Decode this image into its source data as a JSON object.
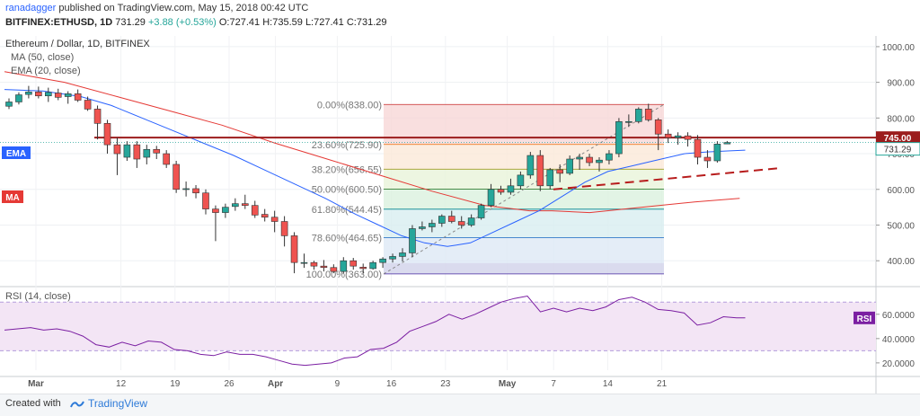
{
  "header": {
    "publisher": "ranadagger",
    "published_text": "published on TradingView.com, May 15, 2018 00:42 UTC",
    "symbol": "BITFINEX:ETHUSD, 1D",
    "last": "731.29",
    "change": "+3.88 (+0.53%)",
    "o_label": "O:",
    "o_value": "727.41",
    "h_label": "H:",
    "h_value": "735.59",
    "l_label": "L:",
    "l_value": "727.41",
    "c_label": "C:",
    "c_value": "731.29"
  },
  "footer": {
    "created_with": "Created with",
    "brand": "TradingView"
  },
  "colors": {
    "up": "#26a69a",
    "down": "#ef5350",
    "ma": "#e53935",
    "ema": "#2962ff",
    "rsi": "#7b1fa2",
    "resistance": "#9b1c1c",
    "trend": "#b71c1c"
  },
  "chart_data": [
    {
      "type": "candlestick",
      "title": "Ethereum / Dollar, 1D, BITFINEX",
      "indicators": [
        "MA (50, close)",
        "EMA (20, close)"
      ],
      "indicator_tags": [
        "EMA",
        "MA"
      ],
      "ylim": [
        330,
        1030
      ],
      "y_ticks": [
        400,
        500,
        600,
        700,
        800,
        900,
        1000
      ],
      "y_tick_labels": [
        "400.00",
        "500.00",
        "600.00",
        "700.00",
        "800.00",
        "900.00",
        "1000.00"
      ],
      "x_ticks": [
        "Mar",
        "12",
        "19",
        "26",
        "Apr",
        "9",
        "16",
        "23",
        "May",
        "7",
        "14",
        "21"
      ],
      "x_tick_days": [
        -5,
        6,
        13,
        20,
        26,
        34,
        41,
        48,
        56,
        62,
        69,
        76
      ],
      "candles_ohlc": [
        [
          833,
          855,
          825,
          845
        ],
        [
          845,
          872,
          838,
          865
        ],
        [
          866,
          890,
          855,
          873
        ],
        [
          873,
          888,
          855,
          862
        ],
        [
          862,
          885,
          845,
          872
        ],
        [
          870,
          882,
          850,
          858
        ],
        [
          860,
          875,
          840,
          868
        ],
        [
          868,
          880,
          845,
          850
        ],
        [
          850,
          860,
          820,
          825
        ],
        [
          825,
          835,
          740,
          785
        ],
        [
          785,
          795,
          700,
          725
        ],
        [
          725,
          745,
          640,
          700
        ],
        [
          690,
          735,
          680,
          725
        ],
        [
          725,
          735,
          660,
          685
        ],
        [
          690,
          725,
          670,
          712
        ],
        [
          712,
          722,
          685,
          702
        ],
        [
          700,
          710,
          660,
          670
        ],
        [
          670,
          680,
          590,
          600
        ],
        [
          600,
          622,
          580,
          602
        ],
        [
          602,
          612,
          575,
          590
        ],
        [
          590,
          600,
          530,
          545
        ],
        [
          545,
          555,
          455,
          535
        ],
        [
          535,
          560,
          520,
          550
        ],
        [
          552,
          575,
          540,
          560
        ],
        [
          560,
          585,
          545,
          555
        ],
        [
          555,
          568,
          520,
          528
        ],
        [
          530,
          545,
          510,
          522
        ],
        [
          522,
          540,
          480,
          510
        ],
        [
          510,
          525,
          440,
          470
        ],
        [
          470,
          480,
          365,
          395
        ],
        [
          395,
          420,
          380,
          395
        ],
        [
          395,
          400,
          375,
          385
        ],
        [
          385,
          402,
          370,
          381
        ],
        [
          381,
          390,
          365,
          370
        ],
        [
          370,
          410,
          365,
          400
        ],
        [
          400,
          408,
          375,
          385
        ],
        [
          382,
          392,
          365,
          378
        ],
        [
          378,
          400,
          375,
          395
        ],
        [
          395,
          410,
          380,
          405
        ],
        [
          405,
          420,
          395,
          412
        ],
        [
          412,
          435,
          398,
          422
        ],
        [
          422,
          500,
          410,
          490
        ],
        [
          490,
          510,
          485,
          495
        ],
        [
          495,
          515,
          480,
          505
        ],
        [
          505,
          530,
          495,
          525
        ],
        [
          525,
          540,
          505,
          510
        ],
        [
          510,
          525,
          490,
          500
        ],
        [
          500,
          530,
          495,
          520
        ],
        [
          520,
          560,
          515,
          555
        ],
        [
          555,
          615,
          550,
          600
        ],
        [
          600,
          610,
          585,
          592
        ],
        [
          592,
          630,
          585,
          610
        ],
        [
          610,
          650,
          600,
          640
        ],
        [
          640,
          705,
          630,
          695
        ],
        [
          695,
          710,
          595,
          610
        ],
        [
          610,
          660,
          600,
          655
        ],
        [
          655,
          670,
          620,
          645
        ],
        [
          645,
          695,
          640,
          685
        ],
        [
          685,
          700,
          655,
          690
        ],
        [
          690,
          700,
          665,
          675
        ],
        [
          675,
          690,
          650,
          682
        ],
        [
          682,
          710,
          670,
          700
        ],
        [
          700,
          800,
          690,
          790
        ],
        [
          790,
          810,
          775,
          790
        ],
        [
          790,
          830,
          785,
          825
        ],
        [
          825,
          840,
          790,
          795
        ],
        [
          795,
          800,
          710,
          755
        ],
        [
          755,
          768,
          730,
          745
        ],
        [
          745,
          760,
          725,
          750
        ],
        [
          750,
          760,
          720,
          740
        ],
        [
          740,
          752,
          670,
          690
        ],
        [
          690,
          710,
          660,
          680
        ],
        [
          680,
          735,
          675,
          727
        ],
        [
          727.41,
          735.59,
          727.41,
          731.29
        ]
      ],
      "ma50": [
        [
          0,
          930
        ],
        [
          8,
          900
        ],
        [
          15,
          860
        ],
        [
          22,
          820
        ],
        [
          29,
          780
        ],
        [
          36,
          730
        ],
        [
          43,
          685
        ],
        [
          50,
          640
        ],
        [
          57,
          595
        ],
        [
          64,
          555
        ],
        [
          70,
          540
        ],
        [
          73,
          540
        ],
        [
          78,
          535
        ],
        [
          85,
          550
        ],
        [
          92,
          565
        ],
        [
          98,
          575
        ]
      ],
      "ema20": [
        [
          0,
          880
        ],
        [
          5,
          876
        ],
        [
          10,
          860
        ],
        [
          14,
          835
        ],
        [
          18,
          800
        ],
        [
          22,
          765
        ],
        [
          26,
          730
        ],
        [
          30,
          695
        ],
        [
          34,
          655
        ],
        [
          38,
          615
        ],
        [
          42,
          575
        ],
        [
          46,
          530
        ],
        [
          49,
          500
        ],
        [
          52,
          470
        ],
        [
          55,
          450
        ],
        [
          58,
          440
        ],
        [
          61,
          450
        ],
        [
          64,
          480
        ],
        [
          67,
          510
        ],
        [
          70,
          540
        ],
        [
          73,
          580
        ],
        [
          76,
          620
        ],
        [
          79,
          650
        ],
        [
          82,
          665
        ],
        [
          85,
          680
        ],
        [
          89,
          700
        ],
        [
          92,
          705
        ],
        [
          95,
          708
        ],
        [
          97,
          710
        ]
      ],
      "fibonacci": [
        {
          "label": "0.00%(838.00)",
          "value": 838.0
        },
        {
          "label": "23.60%(725.90)",
          "value": 725.9
        },
        {
          "label": "38.20%(656.55)",
          "value": 656.55
        },
        {
          "label": "50.00%(600.50)",
          "value": 600.5
        },
        {
          "label": "61.80%(544.45)",
          "value": 544.45
        },
        {
          "label": "78.60%(464.65)",
          "value": 464.65
        },
        {
          "label": "100.00%(363.00)",
          "value": 363.0
        }
      ],
      "resistance": {
        "value": 745.0,
        "label": "745.00"
      },
      "last_price": {
        "value": 731.29,
        "label": "731.29"
      }
    },
    {
      "type": "line",
      "title": "RSI (14, close)",
      "tag": "RSI",
      "ylim": [
        14,
        82
      ],
      "y_ticks": [
        20,
        40,
        60
      ],
      "y_tick_labels": [
        "20.0000",
        "40.0000",
        "60.0000"
      ],
      "bands": [
        30,
        70
      ],
      "values": [
        [
          0,
          47
        ],
        [
          3,
          48
        ],
        [
          6,
          49
        ],
        [
          9,
          47
        ],
        [
          12,
          48
        ],
        [
          15,
          46
        ],
        [
          18,
          42
        ],
        [
          21,
          35
        ],
        [
          24,
          33
        ],
        [
          27,
          37
        ],
        [
          30,
          34
        ],
        [
          33,
          38
        ],
        [
          36,
          37
        ],
        [
          39,
          31
        ],
        [
          42,
          30
        ],
        [
          45,
          27
        ],
        [
          48,
          26
        ],
        [
          51,
          29
        ],
        [
          54,
          27
        ],
        [
          57,
          27
        ],
        [
          60,
          25
        ],
        [
          63,
          22
        ],
        [
          66,
          19
        ],
        [
          69,
          18
        ],
        [
          72,
          19
        ],
        [
          75,
          20
        ],
        [
          78,
          24
        ],
        [
          81,
          25
        ],
        [
          84,
          31
        ],
        [
          87,
          32
        ],
        [
          90,
          37
        ],
        [
          93,
          46
        ],
        [
          96,
          50
        ],
        [
          99,
          54
        ],
        [
          102,
          60
        ],
        [
          105,
          56
        ],
        [
          108,
          60
        ],
        [
          111,
          65
        ],
        [
          114,
          70
        ],
        [
          117,
          73
        ],
        [
          120,
          75
        ],
        [
          123,
          62
        ],
        [
          126,
          65
        ],
        [
          129,
          62
        ],
        [
          132,
          65
        ],
        [
          135,
          63
        ],
        [
          138,
          66
        ],
        [
          141,
          72
        ],
        [
          144,
          74
        ],
        [
          147,
          70
        ],
        [
          150,
          64
        ],
        [
          153,
          63
        ],
        [
          156,
          61
        ],
        [
          159,
          51
        ],
        [
          162,
          53
        ],
        [
          165,
          58
        ],
        [
          168,
          57
        ],
        [
          170,
          57
        ]
      ],
      "last_value": 57
    }
  ]
}
